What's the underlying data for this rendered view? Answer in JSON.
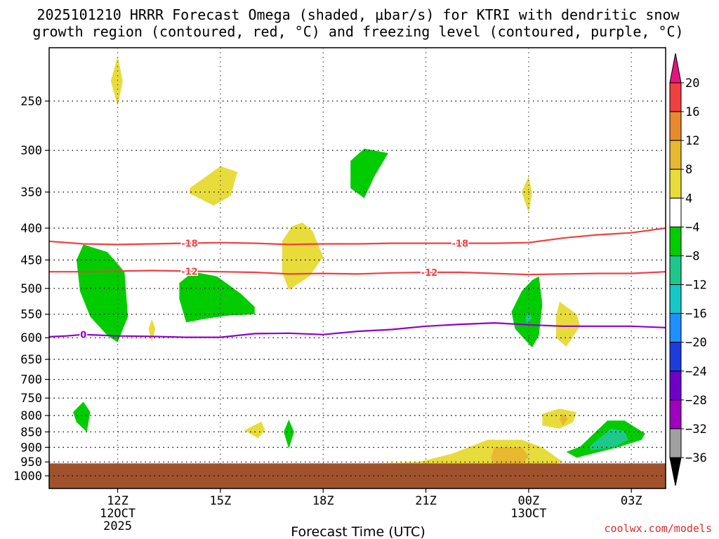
{
  "chart_data": {
    "type": "time-height contour",
    "title_line1": "2025101210 HRRR Forecast Omega (shaded, μbar/s) for KTRI with dendritic snow",
    "title_line2": "growth region (contoured, red, °C) and freezing level (contoured, purple, °C)",
    "xlabel": "Forecast Time (UTC)",
    "credit": "coolwx.com/models",
    "x_ticks": [
      {
        "hour": 12,
        "label": "12Z",
        "sub1": "12OCT",
        "sub2": "2025"
      },
      {
        "hour": 15,
        "label": "15Z",
        "sub1": "",
        "sub2": ""
      },
      {
        "hour": 18,
        "label": "18Z",
        "sub1": "",
        "sub2": ""
      },
      {
        "hour": 21,
        "label": "21Z",
        "sub1": "",
        "sub2": ""
      },
      {
        "hour": 24,
        "label": "00Z",
        "sub1": "13OCT",
        "sub2": ""
      },
      {
        "hour": 27,
        "label": "03Z",
        "sub1": "",
        "sub2": ""
      }
    ],
    "xlim_hours": [
      10,
      28
    ],
    "ylim_hpa": [
      1050,
      200
    ],
    "y_ticks": [
      250,
      300,
      350,
      400,
      450,
      500,
      550,
      600,
      650,
      700,
      750,
      800,
      850,
      900,
      950,
      1000
    ],
    "y_tick_labels": [
      "250",
      "300",
      "350",
      "400",
      "450",
      "500",
      "550",
      "600",
      "650",
      "700",
      "750",
      "800",
      "850",
      "900",
      "950",
      "1000"
    ],
    "surface_pressure_hpa": 955,
    "colorbar": {
      "levels": [
        20,
        16,
        12,
        8,
        4,
        -4,
        -8,
        -12,
        -16,
        -20,
        -24,
        -28,
        -32,
        -36
      ],
      "labels": [
        "20",
        "16",
        "12",
        "8",
        "4",
        "−4",
        "−8",
        "−12",
        "−16",
        "−20",
        "−24",
        "−28",
        "−32",
        "−36"
      ],
      "colors": [
        "#e8147c",
        "#f04040",
        "#e88a2c",
        "#e8b830",
        "#e8dc3c",
        "#ffffff",
        "#00cc00",
        "#1ec88c",
        "#14c8c8",
        "#1e90ff",
        "#1c3cdc",
        "#7000c8",
        "#a000c0",
        "#a0a0a0",
        "#000000"
      ]
    },
    "contours": [
      {
        "name": "dgz_minus18",
        "label": "-18",
        "color": "#f04040",
        "points": [
          [
            10,
            420
          ],
          [
            11,
            424
          ],
          [
            12,
            425
          ],
          [
            13,
            424
          ],
          [
            14,
            423
          ],
          [
            15,
            422
          ],
          [
            16,
            423
          ],
          [
            17,
            425
          ],
          [
            18,
            424
          ],
          [
            19,
            424
          ],
          [
            20,
            423
          ],
          [
            21,
            423
          ],
          [
            22,
            423
          ],
          [
            23,
            423
          ],
          [
            24,
            422
          ],
          [
            25,
            415
          ],
          [
            26,
            410
          ],
          [
            27,
            407
          ],
          [
            28,
            400
          ]
        ],
        "label_hours": [
          14.1,
          22.0
        ]
      },
      {
        "name": "dgz_minus12",
        "label": "-12",
        "color": "#f04040",
        "points": [
          [
            10,
            470
          ],
          [
            11,
            470
          ],
          [
            12,
            469
          ],
          [
            13,
            468
          ],
          [
            14,
            469
          ],
          [
            15,
            470
          ],
          [
            16,
            471
          ],
          [
            17,
            474
          ],
          [
            18,
            473
          ],
          [
            19,
            474
          ],
          [
            20,
            472
          ],
          [
            21,
            471
          ],
          [
            22,
            471
          ],
          [
            23,
            473
          ],
          [
            24,
            475
          ],
          [
            25,
            474
          ],
          [
            26,
            473
          ],
          [
            27,
            473
          ],
          [
            28,
            470
          ]
        ],
        "label_hours": [
          14.1,
          21.1
        ]
      },
      {
        "name": "freezing_level_0",
        "label": "0",
        "color": "#9000c8",
        "points": [
          [
            10,
            598
          ],
          [
            10.5,
            596
          ],
          [
            11,
            593
          ],
          [
            12,
            596
          ],
          [
            13,
            597
          ],
          [
            14,
            599
          ],
          [
            15,
            599
          ],
          [
            16,
            591
          ],
          [
            17,
            590
          ],
          [
            18,
            593
          ],
          [
            19,
            586
          ],
          [
            20,
            582
          ],
          [
            21,
            575
          ],
          [
            22,
            571
          ],
          [
            23,
            568
          ],
          [
            24,
            572
          ],
          [
            25,
            575
          ],
          [
            26,
            575
          ],
          [
            27,
            575
          ],
          [
            28,
            578
          ]
        ],
        "label_hours": [
          11.0
        ]
      }
    ],
    "shaded_regions": [
      {
        "name": "lift-250-12z",
        "color": "#e8dc3c",
        "points": [
          [
            12.0,
            212
          ],
          [
            12.15,
            232
          ],
          [
            12.0,
            255
          ],
          [
            11.8,
            232
          ]
        ]
      },
      {
        "name": "lift-350-15z",
        "color": "#e8dc3c",
        "points": [
          [
            14.1,
            345
          ],
          [
            14.6,
            330
          ],
          [
            15.0,
            318
          ],
          [
            15.5,
            325
          ],
          [
            15.3,
            355
          ],
          [
            14.8,
            368
          ],
          [
            14.1,
            352
          ]
        ]
      },
      {
        "name": "lift-300-19z",
        "color": "#00cc00",
        "points": [
          [
            19.2,
            298
          ],
          [
            19.9,
            303
          ],
          [
            19.5,
            330
          ],
          [
            19.2,
            358
          ],
          [
            18.8,
            345
          ],
          [
            18.8,
            312
          ]
        ]
      },
      {
        "name": "sink-350-00z",
        "color": "#e8dc3c",
        "points": [
          [
            24.0,
            330
          ],
          [
            24.1,
            352
          ],
          [
            24.0,
            378
          ],
          [
            23.8,
            350
          ]
        ]
      },
      {
        "name": "sink-400-17z",
        "color": "#e8dc3c",
        "points": [
          [
            17.4,
            392
          ],
          [
            17.7,
            405
          ],
          [
            18.0,
            445
          ],
          [
            17.6,
            478
          ],
          [
            17.0,
            503
          ],
          [
            16.8,
            470
          ],
          [
            16.8,
            420
          ],
          [
            17.1,
            397
          ]
        ]
      },
      {
        "name": "lift-450-11z",
        "color": "#00cc00",
        "points": [
          [
            11.0,
            425
          ],
          [
            11.7,
            437
          ],
          [
            12.2,
            470
          ],
          [
            12.3,
            555
          ],
          [
            12.0,
            610
          ],
          [
            11.7,
            595
          ],
          [
            11.2,
            555
          ],
          [
            10.9,
            505
          ],
          [
            10.8,
            450
          ]
        ]
      },
      {
        "name": "lift-500-14z",
        "color": "#00cc00",
        "points": [
          [
            14.2,
            470
          ],
          [
            14.9,
            478
          ],
          [
            15.6,
            510
          ],
          [
            16.0,
            535
          ],
          [
            16.0,
            550
          ],
          [
            15.2,
            553
          ],
          [
            14.5,
            560
          ],
          [
            14.0,
            567
          ],
          [
            13.8,
            520
          ],
          [
            13.8,
            490
          ]
        ]
      },
      {
        "name": "sink-580-13z",
        "color": "#e8dc3c",
        "points": [
          [
            13.0,
            560
          ],
          [
            13.1,
            580
          ],
          [
            13.0,
            610
          ],
          [
            12.9,
            580
          ]
        ]
      },
      {
        "name": "lift-550-00z",
        "color": "#00cc00",
        "points": [
          [
            24.3,
            478
          ],
          [
            24.4,
            530
          ],
          [
            24.3,
            595
          ],
          [
            24.1,
            622
          ],
          [
            23.6,
            580
          ],
          [
            23.5,
            545
          ],
          [
            23.8,
            505
          ],
          [
            24.1,
            485
          ]
        ]
      },
      {
        "name": "lift-550-00z-core",
        "color": "#1ec88c",
        "points": [
          [
            24.0,
            545
          ],
          [
            24.1,
            558
          ],
          [
            23.95,
            570
          ],
          [
            23.9,
            558
          ]
        ]
      },
      {
        "name": "sink-580-01z",
        "color": "#e8dc3c",
        "points": [
          [
            24.9,
            525
          ],
          [
            25.4,
            550
          ],
          [
            25.5,
            575
          ],
          [
            25.1,
            620
          ],
          [
            24.8,
            600
          ],
          [
            24.8,
            555
          ]
        ]
      },
      {
        "name": "lift-800-11z",
        "color": "#00cc00",
        "points": [
          [
            11.0,
            760
          ],
          [
            11.2,
            790
          ],
          [
            11.1,
            850
          ],
          [
            10.8,
            820
          ],
          [
            10.7,
            790
          ]
        ]
      },
      {
        "name": "sink-840-16z",
        "color": "#e8dc3c",
        "points": [
          [
            16.2,
            818
          ],
          [
            16.3,
            845
          ],
          [
            16.1,
            870
          ],
          [
            15.7,
            845
          ]
        ]
      },
      {
        "name": "lift-850-17z",
        "color": "#00cc00",
        "points": [
          [
            17.0,
            812
          ],
          [
            17.15,
            850
          ],
          [
            17.0,
            905
          ],
          [
            16.85,
            850
          ]
        ]
      },
      {
        "name": "sink-780-01z",
        "color": "#e8dc3c",
        "points": [
          [
            24.4,
            795
          ],
          [
            24.9,
            780
          ],
          [
            25.4,
            790
          ],
          [
            25.3,
            820
          ],
          [
            24.9,
            840
          ],
          [
            24.4,
            830
          ]
        ]
      },
      {
        "name": "sink-800-01z-core",
        "color": "#e8b830",
        "points": [
          [
            25.0,
            795
          ],
          [
            25.15,
            810
          ],
          [
            25.0,
            830
          ],
          [
            24.9,
            810
          ]
        ]
      },
      {
        "name": "lift-880-02z",
        "color": "#00cc00",
        "points": [
          [
            25.5,
            898
          ],
          [
            26.3,
            815
          ],
          [
            26.8,
            815
          ],
          [
            27.4,
            855
          ],
          [
            27.3,
            875
          ],
          [
            26.6,
            900
          ],
          [
            25.4,
            935
          ],
          [
            25.1,
            915
          ]
        ]
      },
      {
        "name": "lift-880-02z-core",
        "color": "#1ec88c",
        "points": [
          [
            25.8,
            895
          ],
          [
            26.4,
            840
          ],
          [
            26.8,
            848
          ],
          [
            26.9,
            875
          ],
          [
            26.5,
            900
          ],
          [
            25.8,
            910
          ]
        ]
      },
      {
        "name": "sink-920-23z",
        "color": "#e8dc3c",
        "points": [
          [
            16.5,
            955
          ],
          [
            19.5,
            955
          ],
          [
            20.8,
            950
          ],
          [
            21.8,
            920
          ],
          [
            22.8,
            875
          ],
          [
            23.8,
            875
          ],
          [
            24.4,
            900
          ],
          [
            25.0,
            950
          ],
          [
            24.6,
            960
          ],
          [
            16.5,
            960
          ]
        ]
      },
      {
        "name": "sink-920-23z-core",
        "color": "#e8b830",
        "points": [
          [
            22.9,
            935
          ],
          [
            23.0,
            900
          ],
          [
            23.8,
            900
          ],
          [
            24.0,
            930
          ],
          [
            23.8,
            960
          ],
          [
            23.0,
            960
          ]
        ]
      }
    ]
  }
}
